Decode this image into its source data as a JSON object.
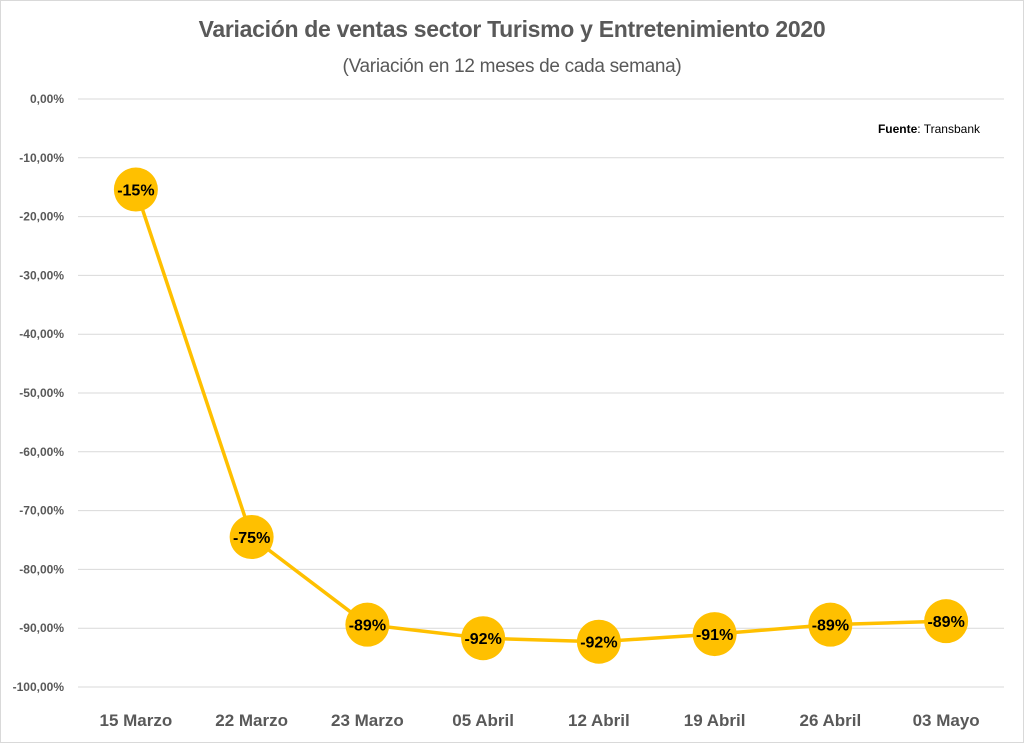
{
  "chart_data": {
    "type": "line",
    "title": "Variación de ventas sector Turismo y Entretenimiento 2020",
    "subtitle": "(Variación en 12 meses de cada semana)",
    "source_label": "Fuente",
    "source_value": ": Transbank",
    "categories": [
      "15 Marzo",
      "22 Marzo",
      "23 Marzo",
      "05 Abril",
      "12 Abril",
      "19 Abril",
      "26 Abril",
      "03 Mayo"
    ],
    "values": [
      -15.4,
      -74.5,
      -89.4,
      -91.7,
      -92.3,
      -91.0,
      -89.4,
      -88.8
    ],
    "data_labels": [
      "-15%",
      "-75%",
      "-89%",
      "-92%",
      "-92%",
      "-91%",
      "-89%",
      "-89%"
    ],
    "y_ticks": [
      0,
      -10,
      -20,
      -30,
      -40,
      -50,
      -60,
      -70,
      -80,
      -90,
      -100
    ],
    "y_tick_labels": [
      "0,00%",
      "-10,00%",
      "-20,00%",
      "-30,00%",
      "-40,00%",
      "-50,00%",
      "-60,00%",
      "-70,00%",
      "-80,00%",
      "-90,00%",
      "-100,00%"
    ],
    "ylim": [
      -100,
      0
    ],
    "grid": true,
    "legend": "none",
    "colors": {
      "line": "#FFC000",
      "marker": "#FFC000",
      "grid": "#d9d9d9",
      "text": "#595959"
    }
  }
}
